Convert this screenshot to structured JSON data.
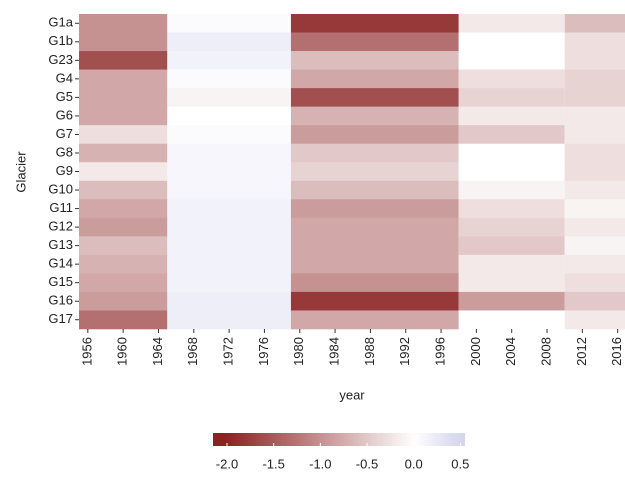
{
  "chart_data": {
    "type": "heatmap",
    "xlabel": "year",
    "ylabel": "Glacier",
    "rows": [
      "G1a",
      "G1b",
      "G23",
      "G4",
      "G5",
      "G6",
      "G7",
      "G8",
      "G9",
      "G10",
      "G11",
      "G12",
      "G13",
      "G14",
      "G15",
      "G16",
      "G17"
    ],
    "x_edges": [
      1955,
      1965,
      1979,
      1998,
      2010,
      2017
    ],
    "values": [
      [
        -1.0,
        0.05,
        -1.8,
        -0.2,
        -0.6
      ],
      [
        -1.0,
        0.2,
        -1.3,
        0.0,
        -0.3
      ],
      [
        -1.6,
        0.15,
        -0.6,
        0.0,
        -0.3
      ],
      [
        -0.8,
        0.05,
        -0.8,
        -0.3,
        -0.4
      ],
      [
        -0.8,
        -0.1,
        -1.6,
        -0.4,
        -0.4
      ],
      [
        -0.8,
        0.0,
        -0.7,
        -0.2,
        -0.2
      ],
      [
        -0.3,
        0.05,
        -0.9,
        -0.5,
        -0.2
      ],
      [
        -0.7,
        0.1,
        -0.5,
        0.0,
        -0.3
      ],
      [
        -0.2,
        0.1,
        -0.4,
        0.0,
        -0.3
      ],
      [
        -0.6,
        0.1,
        -0.6,
        -0.1,
        -0.2
      ],
      [
        -0.8,
        0.15,
        -0.9,
        -0.3,
        -0.1
      ],
      [
        -0.9,
        0.15,
        -0.8,
        -0.4,
        -0.2
      ],
      [
        -0.6,
        0.15,
        -0.8,
        -0.5,
        -0.1
      ],
      [
        -0.7,
        0.15,
        -0.8,
        -0.2,
        -0.2
      ],
      [
        -0.8,
        0.15,
        -1.0,
        -0.2,
        -0.3
      ],
      [
        -0.9,
        0.2,
        -1.8,
        -0.9,
        -0.5
      ],
      [
        -1.3,
        0.2,
        -0.8,
        0.0,
        -0.2
      ]
    ],
    "xlim": [
      1955,
      2017
    ],
    "xticks": [
      1956,
      1960,
      1964,
      1968,
      1972,
      1976,
      1980,
      1984,
      1988,
      1992,
      1996,
      2000,
      2004,
      2008,
      2012,
      2016
    ],
    "clim": [
      -2.15,
      0.55
    ],
    "midpoint": 0,
    "colors": {
      "low": "#8b2323",
      "mid": "#ffffff",
      "high": "#d4d4ee"
    },
    "cticks": [
      {
        "value": -2,
        "label": "-2.0"
      },
      -1.5,
      {
        "value": -1,
        "label": "-1.0"
      },
      -0.5,
      {
        "value": 0,
        "label": "0.0"
      },
      0.5
    ]
  }
}
